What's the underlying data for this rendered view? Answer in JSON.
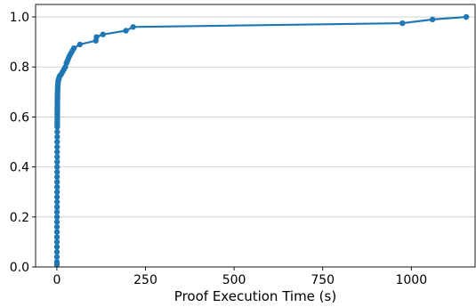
{
  "chart_data": {
    "type": "line",
    "title": "",
    "xlabel": "Proof Execution Time (s)",
    "ylabel": "",
    "xlim": [
      -60,
      1180
    ],
    "ylim": [
      0.0,
      1.05
    ],
    "xticks": [
      0,
      250,
      500,
      750,
      1000
    ],
    "yticks": [
      0.0,
      0.2,
      0.4,
      0.6,
      0.8,
      1.0
    ],
    "xtick_labels": [
      "0",
      "250",
      "500",
      "750",
      "1000"
    ],
    "ytick_labels": [
      "0.0",
      "0.2",
      "0.4",
      "0.6",
      "0.8",
      "1.0"
    ],
    "grid": "horizontal",
    "line_color": "#1f77b4",
    "series": [
      {
        "x": [
          0.1,
          0.1,
          0.1,
          0.2,
          0.2,
          0.2,
          0.3,
          0.3,
          0.3,
          0.4,
          0.4,
          0.4,
          0.5,
          0.5,
          0.5,
          0.6,
          0.6,
          0.6,
          0.7,
          0.7,
          0.7,
          0.8,
          0.8,
          0.8,
          0.9,
          0.9,
          1.0,
          1.0,
          1.0,
          1.1,
          1.1,
          1.2,
          1.2,
          1.3,
          1.3,
          1.4,
          1.4,
          1.5,
          1.5,
          1.6,
          1.7,
          1.8,
          2.0,
          2.2,
          2.5,
          3.0,
          3.5,
          4.0,
          5.0,
          6.0,
          7.0,
          9.0,
          12.0,
          16.0,
          20.0,
          24.0,
          27.0,
          30.0,
          33.0,
          36.0,
          40.0,
          44.0,
          48.0,
          65.0,
          110.0,
          112.0,
          130.0,
          195.0,
          215.0,
          975.0,
          1060.0,
          1155.0
        ],
        "y": [
          0.01,
          0.02,
          0.04,
          0.06,
          0.08,
          0.1,
          0.12,
          0.14,
          0.16,
          0.18,
          0.2,
          0.22,
          0.24,
          0.26,
          0.28,
          0.3,
          0.32,
          0.34,
          0.36,
          0.38,
          0.4,
          0.42,
          0.44,
          0.46,
          0.48,
          0.5,
          0.52,
          0.54,
          0.56,
          0.57,
          0.58,
          0.59,
          0.6,
          0.61,
          0.62,
          0.63,
          0.64,
          0.65,
          0.66,
          0.67,
          0.68,
          0.69,
          0.7,
          0.71,
          0.72,
          0.73,
          0.74,
          0.745,
          0.75,
          0.755,
          0.76,
          0.765,
          0.77,
          0.78,
          0.79,
          0.8,
          0.815,
          0.825,
          0.835,
          0.845,
          0.855,
          0.865,
          0.875,
          0.89,
          0.905,
          0.92,
          0.93,
          0.945,
          0.96,
          0.975,
          0.99,
          1.0
        ]
      }
    ]
  }
}
